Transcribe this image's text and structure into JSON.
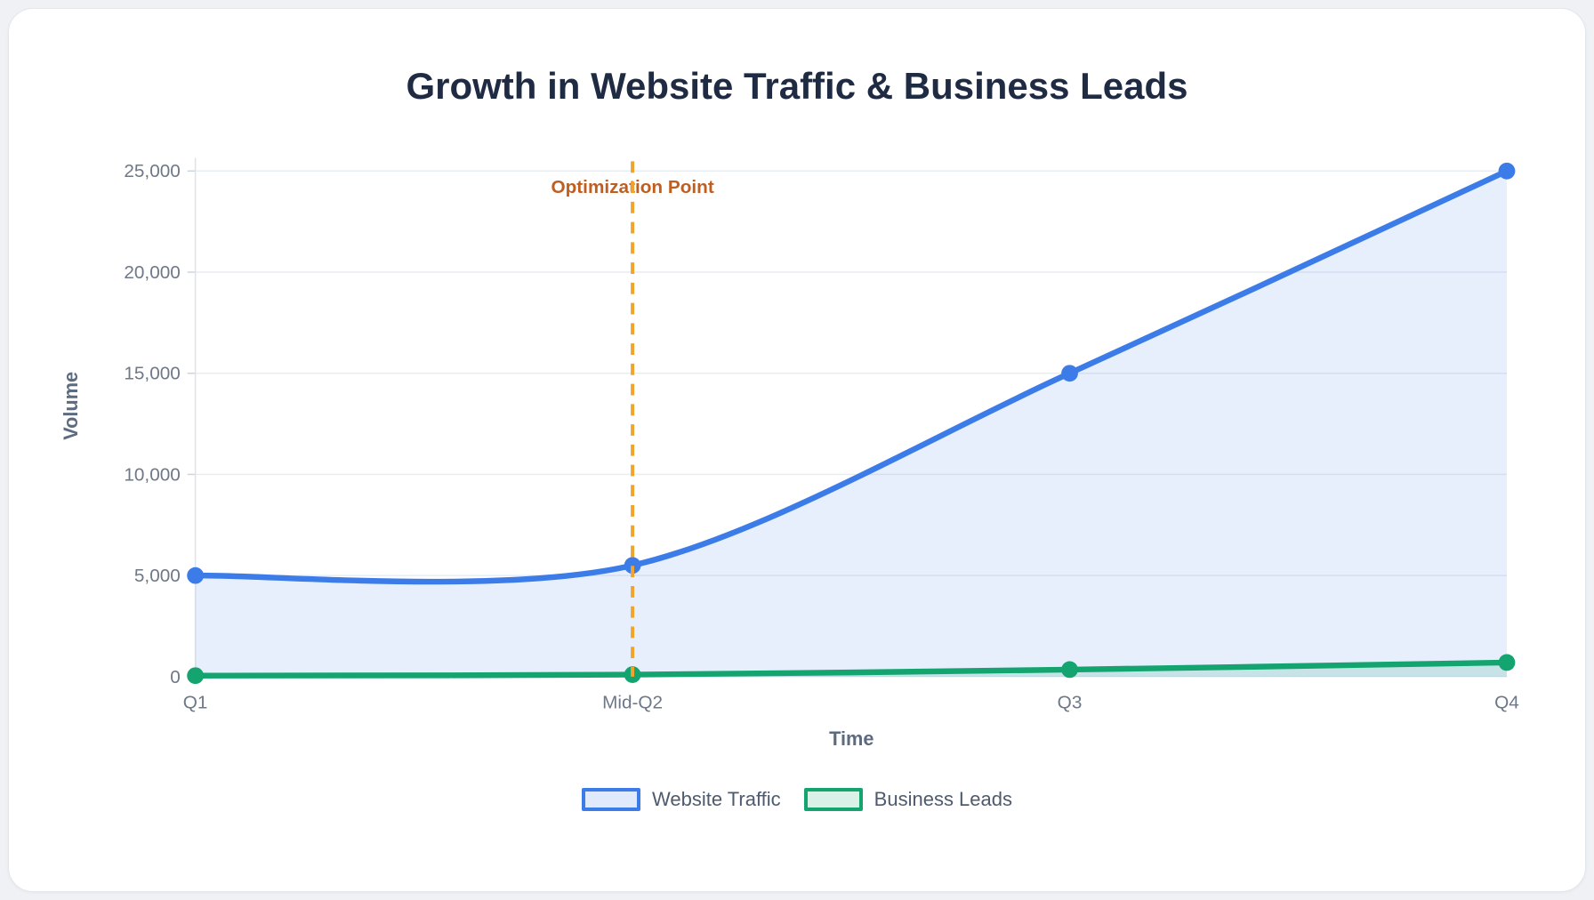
{
  "title": "Growth in Website Traffic & Business Leads",
  "chart_data": {
    "type": "area",
    "x_categories": [
      "Q1",
      "Mid-Q2",
      "Q3",
      "Q4"
    ],
    "series": [
      {
        "name": "Website Traffic",
        "values": [
          5000,
          5500,
          15000,
          25000
        ],
        "color": "#3c7ce9",
        "area_fill": "rgba(60,124,233,0.12)",
        "legend_fill": "#e1eafc"
      },
      {
        "name": "Business Leads",
        "values": [
          50,
          100,
          350,
          700
        ],
        "color": "#13a46f",
        "area_fill": "rgba(19,164,111,0.15)",
        "legend_fill": "#daf1e7"
      }
    ],
    "xlabel": "Time",
    "ylabel": "Volume",
    "ylim": [
      0,
      25000
    ],
    "yticks": [
      0,
      5000,
      10000,
      15000,
      20000,
      25000
    ],
    "ytick_labels": [
      "0",
      "5,000",
      "10,000",
      "15,000",
      "20,000",
      "25,000"
    ],
    "grid": "horizontal",
    "legend_position": "bottom",
    "annotation": {
      "type": "vertical-dashed-line",
      "x_category": "Mid-Q2",
      "label": "Optimization Point",
      "line_color": "#f1a42b",
      "label_color": "#c05e20"
    }
  }
}
